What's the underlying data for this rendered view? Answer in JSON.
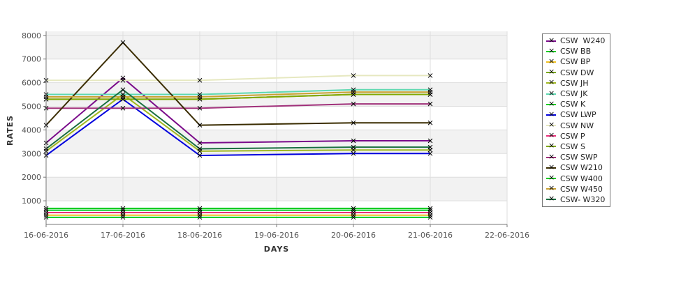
{
  "chart_data": {
    "type": "line",
    "xlabel": "DAYS",
    "ylabel": "RATES",
    "ylim": [
      0,
      8000
    ],
    "yticks": [
      1000,
      2000,
      3000,
      4000,
      5000,
      6000,
      7000,
      8000
    ],
    "xticks": [
      "16-06-2016",
      "17-06-2016",
      "18-06-2016",
      "19-06-2016",
      "20-06-2016",
      "21-06-2016",
      "22-06-2016"
    ],
    "x": [
      "16-06-2016",
      "17-06-2016",
      "18-06-2016",
      "20-06-2016",
      "21-06-2016"
    ],
    "legend_position": "right",
    "series": [
      {
        "name": "CSW  W240",
        "color": "#7a0a8a",
        "values": [
          3450,
          6200,
          3450,
          3540,
          3540
        ]
      },
      {
        "name": "CSW BB",
        "color": "#00cc22",
        "values": [
          680,
          680,
          680,
          680,
          680
        ]
      },
      {
        "name": "CSW BP",
        "color": "#f0c020",
        "values": [
          390,
          390,
          390,
          390,
          390
        ]
      },
      {
        "name": "CSW DW",
        "color": "#7aa800",
        "values": [
          5300,
          5300,
          5300,
          5500,
          5500
        ]
      },
      {
        "name": "CSW JH",
        "color": "#a0b820",
        "values": [
          3100,
          5500,
          3100,
          3150,
          3150
        ]
      },
      {
        "name": "CSW JK",
        "color": "#5dd8b0",
        "values": [
          5500,
          5500,
          5500,
          5700,
          5700
        ]
      },
      {
        "name": "CSW K",
        "color": "#00cc22",
        "values": [
          300,
          300,
          300,
          300,
          300
        ]
      },
      {
        "name": "CSW LWP",
        "color": "#0000dd",
        "values": [
          2920,
          5300,
          2920,
          3000,
          3000
        ]
      },
      {
        "name": "CSW NW",
        "color": "#e6e8c0",
        "values": [
          6100,
          6100,
          6100,
          6300,
          6300
        ]
      },
      {
        "name": "CSW P",
        "color": "#e8307a",
        "values": [
          500,
          500,
          500,
          500,
          500
        ]
      },
      {
        "name": "CSW S",
        "color": "#80a800",
        "values": [
          5300,
          5300,
          5300,
          5500,
          5500
        ]
      },
      {
        "name": "CSW SWP",
        "color": "#a0307a",
        "values": [
          4920,
          4920,
          4920,
          5100,
          5100
        ]
      },
      {
        "name": "CSW W210",
        "color": "#3a2c00",
        "values": [
          4200,
          7700,
          4200,
          4300,
          4300
        ]
      },
      {
        "name": "CSW W400",
        "color": "#00cc22",
        "values": [
          600,
          600,
          600,
          600,
          600
        ]
      },
      {
        "name": "CSW W450",
        "color": "#c8a030",
        "values": [
          5400,
          5400,
          5400,
          5600,
          5600
        ]
      },
      {
        "name": "CSW- W320",
        "color": "#1a7040",
        "values": [
          3200,
          5700,
          3200,
          3270,
          3270
        ]
      }
    ]
  }
}
